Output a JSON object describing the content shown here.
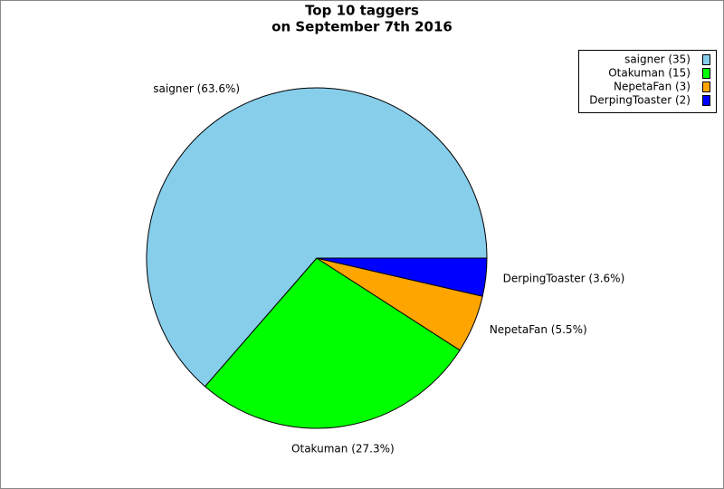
{
  "chart_data": {
    "type": "pie",
    "title": "Top 10 taggers",
    "subtitle": "on September 7th 2016",
    "values": [
      63.6,
      27.3,
      5.5,
      3.6
    ],
    "value_labels": [
      "saigner (63.6%)",
      "Otakuman (27.3%)",
      "NepetaFan (5.5%)",
      "DerpingToaster (3.6%)"
    ],
    "legend_labels": [
      "saigner (35)",
      "Otakuman (15)",
      "NepetaFan (3)",
      "DerpingToaster (2)"
    ],
    "colors": [
      "#87ceeb",
      "#00ff00",
      "#ffa500",
      "#0000ff"
    ],
    "legend": "top-right"
  }
}
